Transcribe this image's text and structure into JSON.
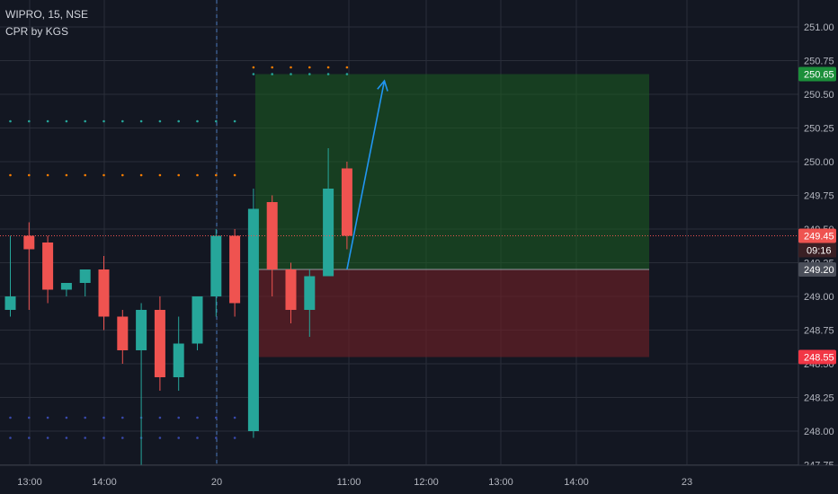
{
  "header": {
    "symbol_line": "WIPRO, 15, NSE",
    "indicator_line": "CPR by KGS"
  },
  "colors": {
    "background": "#131722",
    "grid": "#2a2e39",
    "up": "#26a69a",
    "down": "#ef5350",
    "target_zone": "#1b5e20",
    "stop_zone": "#6b1f26",
    "arrow": "#2196f3",
    "price_line": "#ef5350"
  },
  "chart_data": {
    "type": "candlestick",
    "title": "",
    "yticks": [
      "251.00",
      "250.75",
      "250.50",
      "250.25",
      "250.00",
      "249.75",
      "249.50",
      "249.25",
      "249.00",
      "248.75",
      "248.50",
      "248.25",
      "248.00",
      "247.75"
    ],
    "xticks": [
      "13:00",
      "14:00",
      "20",
      "11:00",
      "12:00",
      "13:00",
      "14:00",
      "23"
    ],
    "ylim": [
      247.75,
      251.15
    ],
    "candles": [
      {
        "o": 248.9,
        "h": 249.45,
        "l": 248.85,
        "c": 249.0
      },
      {
        "o": 249.45,
        "h": 249.55,
        "l": 248.9,
        "c": 249.35
      },
      {
        "o": 249.4,
        "h": 249.45,
        "l": 248.95,
        "c": 249.05
      },
      {
        "o": 249.05,
        "h": 249.1,
        "l": 249.0,
        "c": 249.1
      },
      {
        "o": 249.1,
        "h": 249.2,
        "l": 249.0,
        "c": 249.2
      },
      {
        "o": 249.2,
        "h": 249.3,
        "l": 248.75,
        "c": 248.85
      },
      {
        "o": 248.85,
        "h": 248.9,
        "l": 248.5,
        "c": 248.6
      },
      {
        "o": 248.6,
        "h": 248.95,
        "l": 247.75,
        "c": 248.9
      },
      {
        "o": 248.9,
        "h": 249.0,
        "l": 248.3,
        "c": 248.4
      },
      {
        "o": 248.4,
        "h": 248.85,
        "l": 248.3,
        "c": 248.65
      },
      {
        "o": 248.65,
        "h": 249.0,
        "l": 248.6,
        "c": 249.0
      },
      {
        "o": 249.0,
        "h": 249.5,
        "l": 248.85,
        "c": 249.45
      },
      {
        "o": 249.45,
        "h": 249.5,
        "l": 248.85,
        "c": 248.95
      },
      {
        "o": 248.0,
        "h": 249.8,
        "l": 247.95,
        "c": 249.65
      },
      {
        "o": 249.7,
        "h": 249.75,
        "l": 249.0,
        "c": 249.2
      },
      {
        "o": 249.2,
        "h": 249.25,
        "l": 248.8,
        "c": 248.9
      },
      {
        "o": 248.9,
        "h": 249.2,
        "l": 248.7,
        "c": 249.15
      },
      {
        "o": 249.15,
        "h": 250.1,
        "l": 249.15,
        "c": 249.8
      },
      {
        "o": 249.95,
        "h": 250.0,
        "l": 249.35,
        "c": 249.45
      }
    ],
    "cpr_levels": [
      {
        "value": 250.3,
        "color": "#26a69a",
        "from": 0,
        "to": 12
      },
      {
        "value": 249.9,
        "color": "#f57c00",
        "from": 0,
        "to": 12
      },
      {
        "value": 248.1,
        "color": "#3949ab",
        "from": 0,
        "to": 12
      },
      {
        "value": 247.95,
        "color": "#3949ab",
        "from": 0,
        "to": 12
      },
      {
        "value": 250.7,
        "color": "#f57c00",
        "from": 13,
        "to": 18
      },
      {
        "value": 250.65,
        "color": "#26a69a",
        "from": 13,
        "to": 18
      }
    ],
    "position": {
      "entry": 249.2,
      "target": 250.65,
      "stop": 248.55,
      "start_index": 13,
      "end_index": 36
    },
    "current_price": 249.45,
    "price_labels": [
      {
        "value": 250.65,
        "text": "250.65",
        "bg": "#1b8f3a",
        "fg": "#ffffff"
      },
      {
        "value": 249.45,
        "text": "249.45",
        "bg": "#ef5350",
        "fg": "#ffffff"
      },
      {
        "value": 249.2,
        "text": "249.20",
        "bg": "#4a4e59",
        "fg": "#ffffff"
      },
      {
        "value": 248.55,
        "text": "248.55",
        "bg": "#f23645",
        "fg": "#ffffff"
      }
    ],
    "countdown": "09:16",
    "arrow": {
      "from_index": 18,
      "from_value": 249.2,
      "to_index": 20,
      "to_value": 250.6
    }
  }
}
